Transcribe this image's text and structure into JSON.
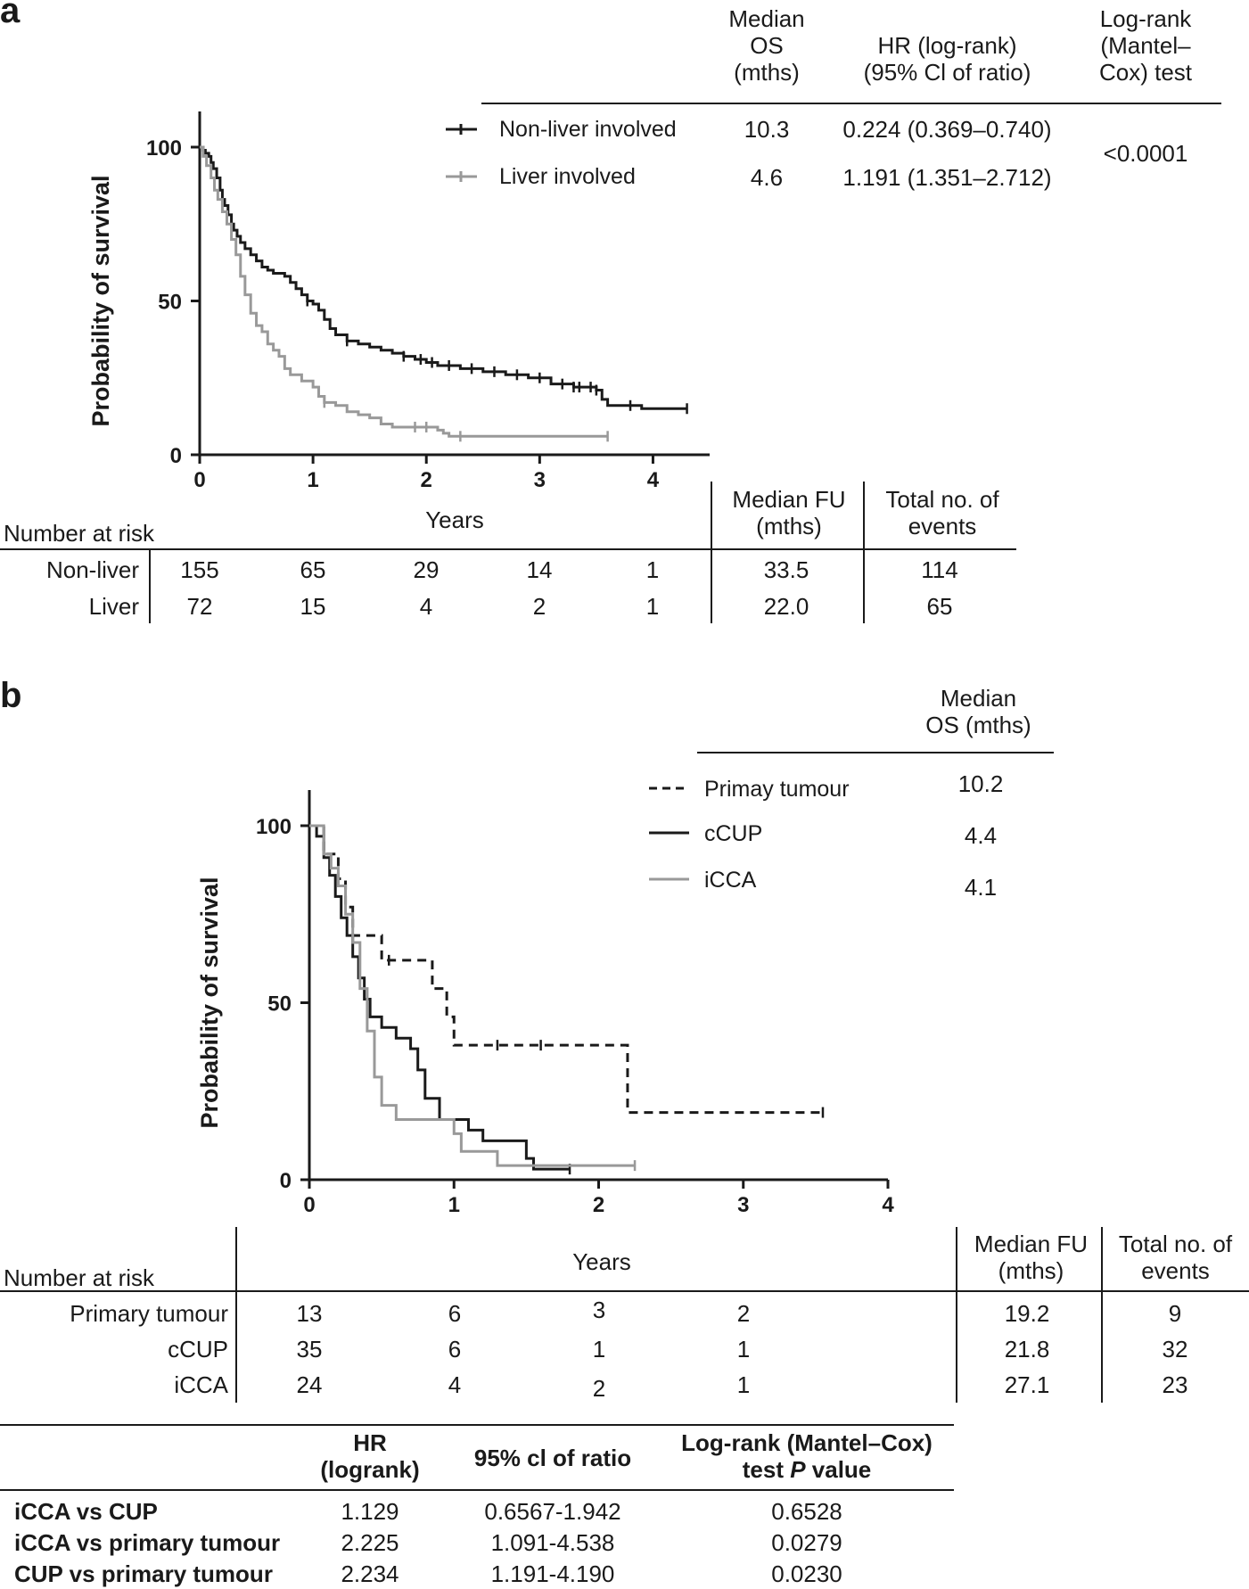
{
  "chart_data": [
    {
      "panel": "a",
      "type": "line",
      "subtype": "kaplan-meier",
      "ylabel": "Probability of survival",
      "xlabel": "Years",
      "xlim": [
        0,
        4.5
      ],
      "ylim": [
        0,
        100
      ],
      "xticks": [
        "0",
        "1",
        "2",
        "3",
        "4"
      ],
      "yticks": [
        "0",
        "50",
        "100"
      ],
      "series": [
        {
          "name": "Non-liver involved",
          "color": "#1a1a1a",
          "x": [
            0,
            0.03,
            0.05,
            0.08,
            0.1,
            0.12,
            0.15,
            0.18,
            0.2,
            0.22,
            0.25,
            0.28,
            0.3,
            0.33,
            0.36,
            0.4,
            0.45,
            0.5,
            0.55,
            0.6,
            0.65,
            0.7,
            0.75,
            0.8,
            0.85,
            0.9,
            0.95,
            1.0,
            1.05,
            1.1,
            1.15,
            1.2,
            1.3,
            1.4,
            1.5,
            1.6,
            1.7,
            1.8,
            1.9,
            2.0,
            2.1,
            2.3,
            2.5,
            2.7,
            2.9,
            3.1,
            3.3,
            3.5,
            3.55,
            3.6,
            3.9,
            4.0,
            4.3
          ],
          "y": [
            100,
            99,
            98,
            97,
            95,
            93,
            90,
            86,
            83,
            81,
            78,
            75,
            73,
            71,
            69,
            67,
            65,
            63,
            61,
            60,
            59,
            59,
            58,
            56,
            54,
            52,
            50,
            49,
            47,
            44,
            41,
            39,
            37,
            36,
            35,
            34,
            33,
            32,
            31,
            30,
            29,
            28,
            27,
            26,
            25,
            23,
            22,
            21,
            18,
            16,
            15,
            15,
            15
          ],
          "censored": [
            0.95,
            1.3,
            1.8,
            1.95,
            2.05,
            2.2,
            2.4,
            2.6,
            2.8,
            3.0,
            3.2,
            3.3,
            3.35,
            3.45,
            3.5,
            3.8,
            4.3
          ]
        },
        {
          "name": "Liver involved",
          "color": "#999999",
          "x": [
            0,
            0.03,
            0.06,
            0.1,
            0.13,
            0.16,
            0.2,
            0.24,
            0.28,
            0.32,
            0.36,
            0.4,
            0.45,
            0.5,
            0.55,
            0.6,
            0.65,
            0.7,
            0.75,
            0.8,
            0.9,
            1.0,
            1.05,
            1.1,
            1.2,
            1.3,
            1.4,
            1.5,
            1.6,
            1.7,
            2.1,
            2.15,
            2.2,
            2.3,
            3.6
          ],
          "y": [
            100,
            97,
            94,
            90,
            86,
            83,
            79,
            75,
            70,
            65,
            58,
            52,
            46,
            42,
            40,
            36,
            34,
            32,
            28,
            26,
            24,
            22,
            19,
            17,
            16,
            14,
            13,
            12,
            10,
            9,
            8,
            7,
            6,
            6,
            6
          ],
          "censored": [
            1.1,
            1.9,
            2.0,
            2.3,
            3.6
          ]
        }
      ]
    },
    {
      "panel": "b",
      "type": "line",
      "subtype": "kaplan-meier",
      "ylabel": "Probability of survival",
      "xlabel": "Years",
      "xlim": [
        0,
        4
      ],
      "ylim": [
        0,
        100
      ],
      "xticks": [
        "0",
        "1",
        "2",
        "3",
        "4"
      ],
      "yticks": [
        "0",
        "50",
        "100"
      ],
      "series": [
        {
          "name": "Primay tumour",
          "style": "dashed",
          "color": "#1a1a1a",
          "x": [
            0,
            0.1,
            0.2,
            0.25,
            0.3,
            0.4,
            0.5,
            0.7,
            0.85,
            0.95,
            1.0,
            2.15,
            2.2,
            3.55
          ],
          "y": [
            100,
            92,
            85,
            77,
            69,
            69,
            62,
            62,
            54,
            46,
            38,
            38,
            19,
            19
          ],
          "censored": [
            0.55,
            1.3,
            1.6,
            3.55
          ]
        },
        {
          "name": "cCUP",
          "style": "solid",
          "color": "#1a1a1a",
          "x": [
            0,
            0.05,
            0.1,
            0.14,
            0.18,
            0.22,
            0.26,
            0.3,
            0.34,
            0.38,
            0.42,
            0.5,
            0.6,
            0.7,
            0.75,
            0.8,
            0.9,
            1.0,
            1.1,
            1.2,
            1.5,
            1.55,
            1.8
          ],
          "y": [
            100,
            97,
            91,
            86,
            80,
            74,
            69,
            63,
            57,
            51,
            46,
            43,
            40,
            37,
            31,
            23,
            17,
            17,
            14,
            11,
            6,
            3,
            3
          ],
          "censored": [
            1.8
          ]
        },
        {
          "name": "iCCA",
          "style": "solid",
          "color": "#999999",
          "x": [
            0,
            0.1,
            0.15,
            0.2,
            0.25,
            0.3,
            0.35,
            0.4,
            0.45,
            0.5,
            0.6,
            0.9,
            1.0,
            1.05,
            1.3,
            1.9,
            2.25
          ],
          "y": [
            100,
            92,
            88,
            83,
            75,
            67,
            54,
            42,
            29,
            21,
            17,
            17,
            13,
            8,
            4,
            4,
            4
          ],
          "censored": [
            2.25
          ]
        }
      ]
    }
  ],
  "panelA": {
    "letter": "a",
    "header": {
      "median_os": [
        "Median",
        "OS",
        "(mths)"
      ],
      "hr": [
        "HR (log-rank)",
        "(95% Cl of ratio)"
      ],
      "logrank": [
        "Log-rank",
        "(Mantel–",
        "Cox) test"
      ]
    },
    "rows": [
      {
        "label": "Non-liver involved",
        "median": "10.3",
        "hr": "0.224 (0.369–0.740)"
      },
      {
        "label": "Liver involved",
        "median": "4.6",
        "hr": "1.191 (1.351–2.712)"
      }
    ],
    "pvalue": "<0.0001",
    "xaxis_title": "Years",
    "risk": {
      "title": "Number at risk",
      "fu_header": [
        "Median FU",
        "(mths)"
      ],
      "events_header": [
        "Total no. of",
        "events"
      ],
      "rows": [
        {
          "label": "Non-liver",
          "values": [
            "155",
            "65",
            "29",
            "14",
            "1"
          ],
          "fu": "33.5",
          "events": "114"
        },
        {
          "label": "Liver",
          "values": [
            "72",
            "15",
            "4",
            "2",
            "1"
          ],
          "fu": "22.0",
          "events": "65"
        }
      ]
    }
  },
  "panelB": {
    "letter": "b",
    "header": [
      "Median",
      "OS (mths)"
    ],
    "legend": [
      {
        "label": "Primay tumour",
        "median": "10.2"
      },
      {
        "label": "cCUP",
        "median": "4.4"
      },
      {
        "label": "iCCA",
        "median": "4.1"
      }
    ],
    "xaxis_title": "Years",
    "risk": {
      "title": "Number at risk",
      "fu_header": [
        "Median FU",
        "(mths)"
      ],
      "events_header": [
        "Total no. of",
        "events"
      ],
      "rows": [
        {
          "label": "Primary tumour",
          "values": [
            "13",
            "6",
            "3",
            "2"
          ],
          "fu": "19.2",
          "events": "9"
        },
        {
          "label": "cCUP",
          "values": [
            "35",
            "6",
            "1",
            "1"
          ],
          "fu": "21.8",
          "events": "32"
        },
        {
          "label": "iCCA",
          "values": [
            "24",
            "4",
            "2",
            "1"
          ],
          "fu": "27.1",
          "events": "23"
        }
      ]
    },
    "comparison": {
      "headers": {
        "hr": [
          "HR",
          "(logrank)"
        ],
        "ci": "95% cl of ratio",
        "p_line1": "Log-rank (Mantel–Cox)",
        "p_line2_pre": "test ",
        "p_line2_italic": "P",
        "p_line2_post": " value"
      },
      "rows": [
        {
          "label": "iCCA vs CUP",
          "hr": "1.129",
          "ci": "0.6567-1.942",
          "p": "0.6528"
        },
        {
          "label": "iCCA vs primary tumour",
          "hr": "2.225",
          "ci": "1.091-4.538",
          "p": "0.0279"
        },
        {
          "label": "CUP vs primary tumour",
          "hr": "2.234",
          "ci": "1.191-4.190",
          "p": "0.0230"
        }
      ]
    }
  }
}
